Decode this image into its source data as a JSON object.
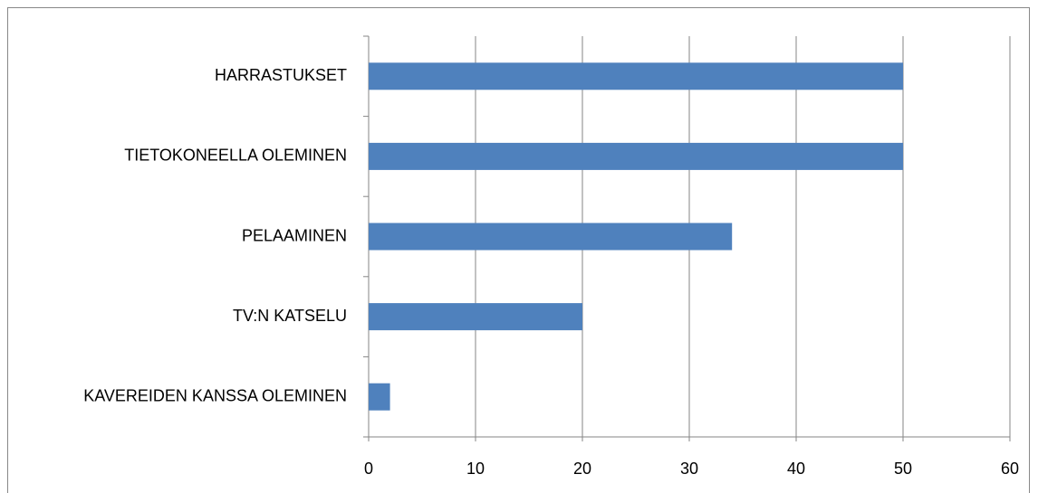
{
  "chart_data": {
    "type": "bar",
    "orientation": "horizontal",
    "categories": [
      "HARRASTUKSET",
      "TIETOKONEELLA OLEMINEN",
      "PELAAMINEN",
      "TV:N KATSELU",
      "KAVEREIDEN KANSSA OLEMINEN"
    ],
    "values": [
      50,
      50,
      34,
      20,
      2
    ],
    "color": "#4f81bd",
    "xlim": [
      0,
      60
    ],
    "xticks": [
      0,
      10,
      20,
      30,
      40,
      50,
      60
    ],
    "grid": true
  }
}
